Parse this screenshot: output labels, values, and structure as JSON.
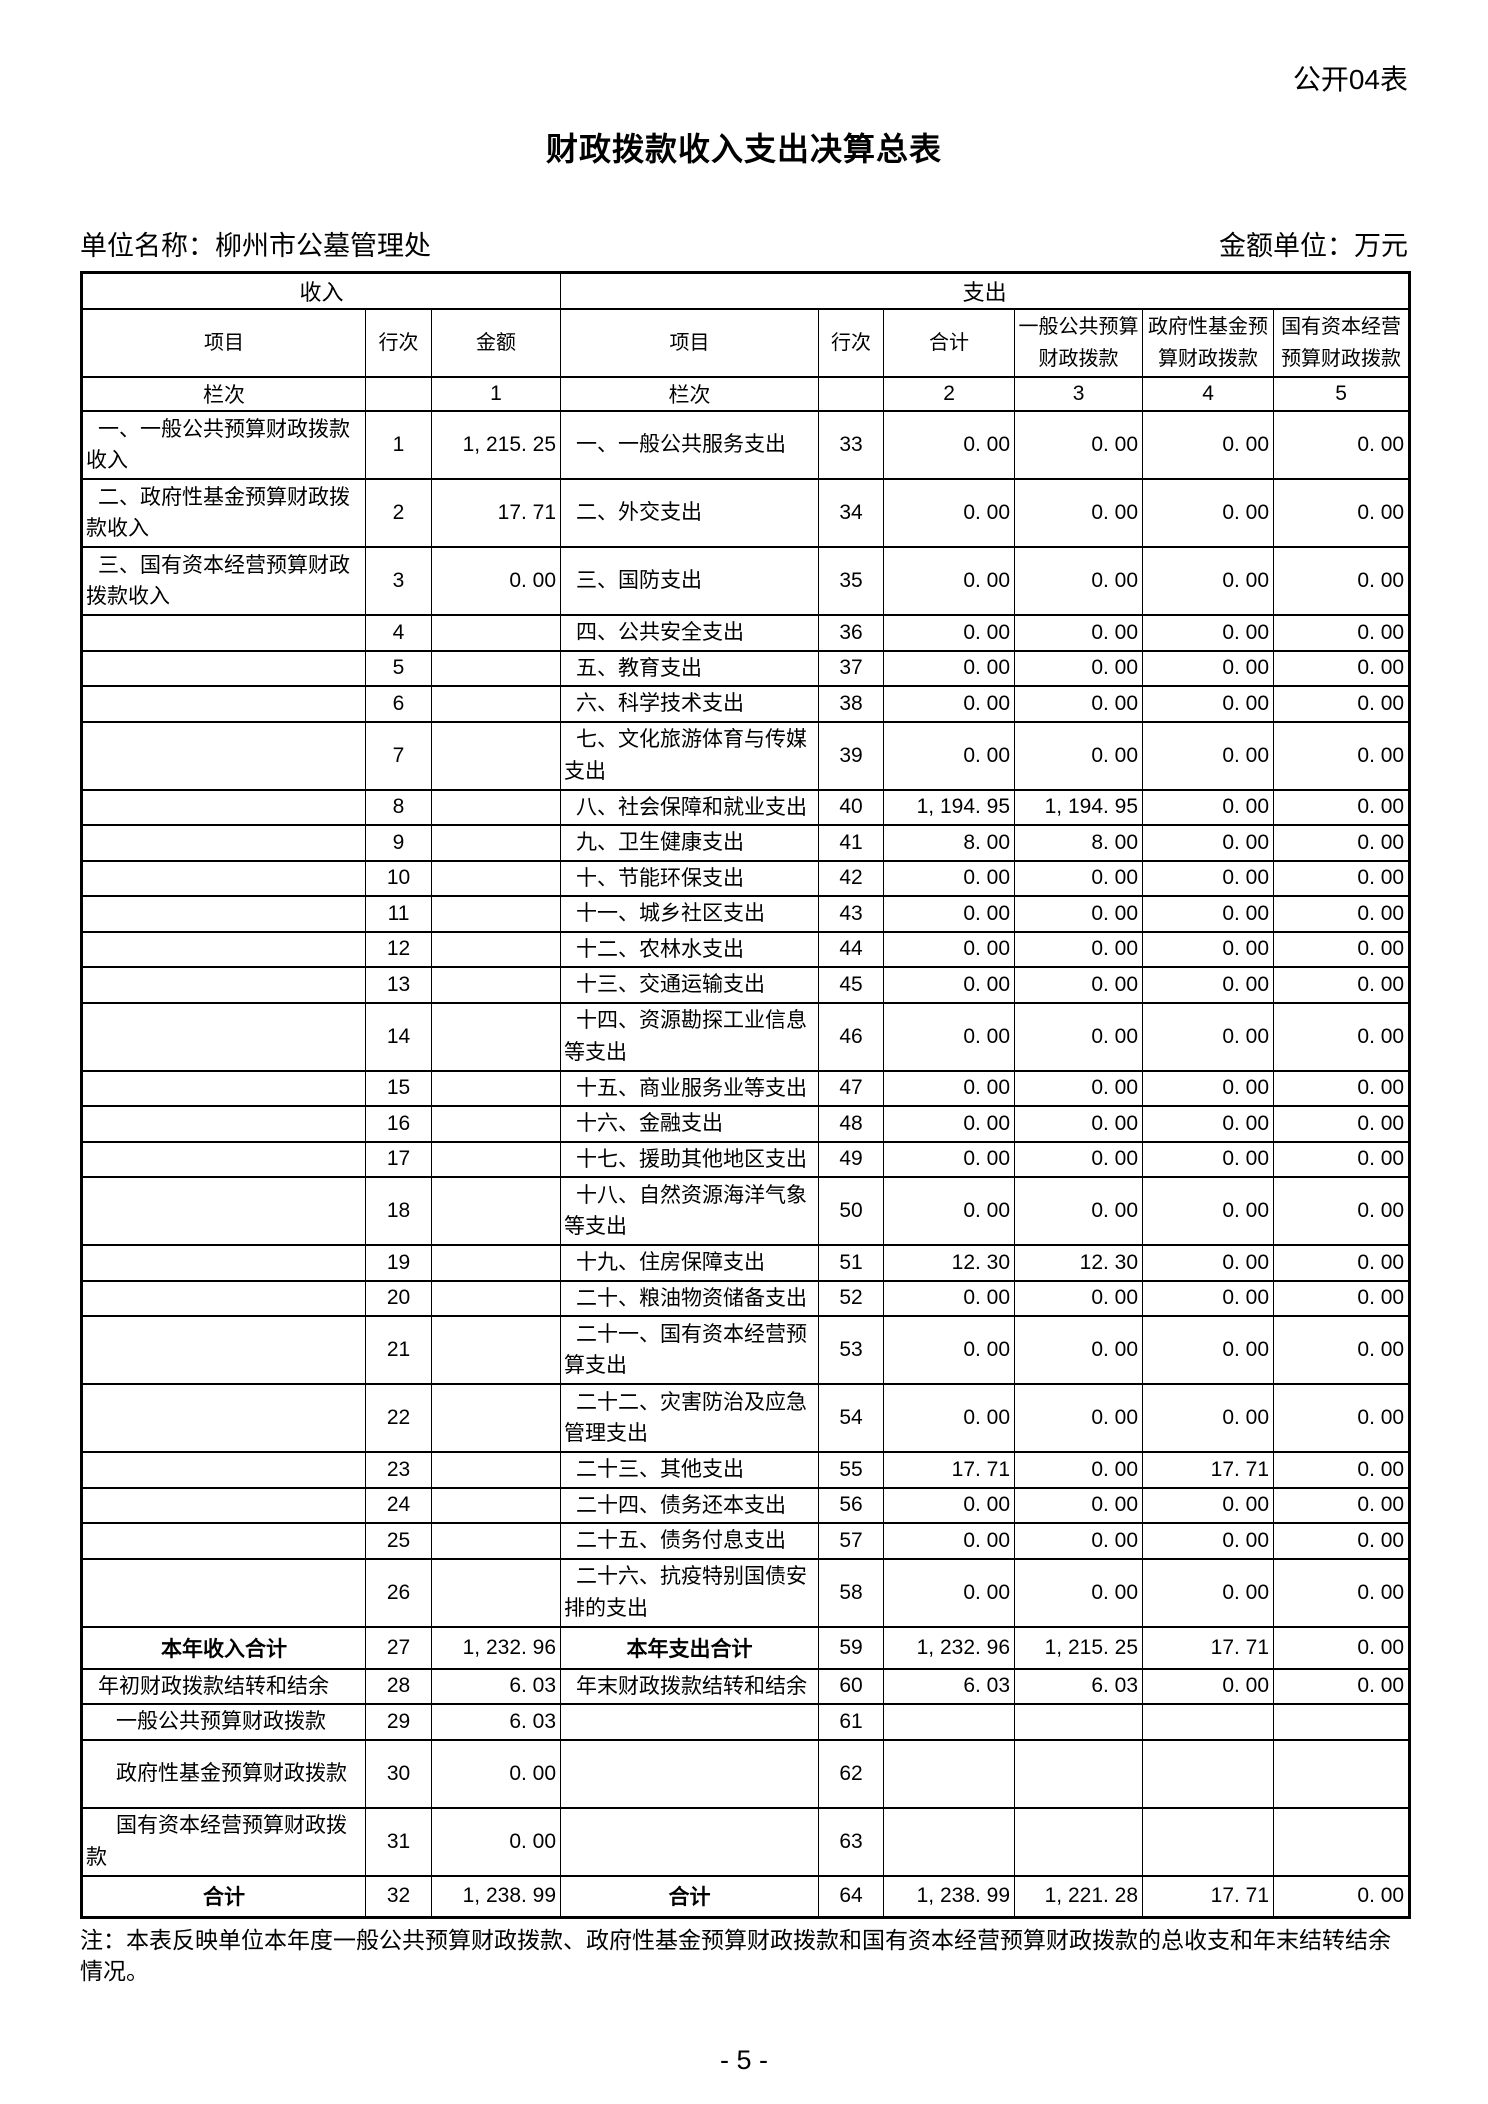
{
  "page": {
    "form_label": "公开04表",
    "title": "财政拨款收入支出决算总表",
    "unit_name": "单位名称：柳州市公墓管理处",
    "amount_unit": "金额单位：万元",
    "note": "注：本表反映单位本年度一般公共预算财政拨款、政府性基金预算财政拨款和国有资本经营预算财政拨款的总收支和年末结转结余情况。",
    "page_number": "- 5 -"
  },
  "table": {
    "group_headers": {
      "income": "收入",
      "expenditure": "支出"
    },
    "columns": [
      "项目",
      "行次",
      "金额",
      "项目",
      "行次",
      "合计",
      "一般公共预算财政拨款",
      "政府性基金预算财政拨款",
      "国有资本经营预算财政拨款"
    ],
    "index_row": [
      "栏次",
      "",
      "1",
      "栏次",
      "",
      "2",
      "3",
      "4",
      "5"
    ],
    "rows": [
      {
        "c": [
          "一、一般公共预算财政拨款收入",
          "1",
          "1, 215. 25",
          "一、一般公共服务支出",
          "33",
          "0. 00",
          "0. 00",
          "0. 00",
          "0. 00"
        ],
        "tall": true
      },
      {
        "c": [
          "二、政府性基金预算财政拨款收入",
          "2",
          "17. 71",
          "二、外交支出",
          "34",
          "0. 00",
          "0. 00",
          "0. 00",
          "0. 00"
        ],
        "tall": true
      },
      {
        "c": [
          "三、国有资本经营预算财政拨款收入",
          "3",
          "0. 00",
          "三、国防支出",
          "35",
          "0. 00",
          "0. 00",
          "0. 00",
          "0. 00"
        ],
        "tall": true
      },
      {
        "c": [
          "",
          "4",
          "",
          "四、公共安全支出",
          "36",
          "0. 00",
          "0. 00",
          "0. 00",
          "0. 00"
        ]
      },
      {
        "c": [
          "",
          "5",
          "",
          "五、教育支出",
          "37",
          "0. 00",
          "0. 00",
          "0. 00",
          "0. 00"
        ]
      },
      {
        "c": [
          "",
          "6",
          "",
          "六、科学技术支出",
          "38",
          "0. 00",
          "0. 00",
          "0. 00",
          "0. 00"
        ]
      },
      {
        "c": [
          "",
          "7",
          "",
          "七、文化旅游体育与传媒支出",
          "39",
          "0. 00",
          "0. 00",
          "0. 00",
          "0. 00"
        ],
        "tall": true
      },
      {
        "c": [
          "",
          "8",
          "",
          "八、社会保障和就业支出",
          "40",
          "1, 194. 95",
          "1, 194. 95",
          "0. 00",
          "0. 00"
        ]
      },
      {
        "c": [
          "",
          "9",
          "",
          "九、卫生健康支出",
          "41",
          "8. 00",
          "8. 00",
          "0. 00",
          "0. 00"
        ]
      },
      {
        "c": [
          "",
          "10",
          "",
          "十、节能环保支出",
          "42",
          "0. 00",
          "0. 00",
          "0. 00",
          "0. 00"
        ]
      },
      {
        "c": [
          "",
          "11",
          "",
          "十一、城乡社区支出",
          "43",
          "0. 00",
          "0. 00",
          "0. 00",
          "0. 00"
        ]
      },
      {
        "c": [
          "",
          "12",
          "",
          "十二、农林水支出",
          "44",
          "0. 00",
          "0. 00",
          "0. 00",
          "0. 00"
        ]
      },
      {
        "c": [
          "",
          "13",
          "",
          "十三、交通运输支出",
          "45",
          "0. 00",
          "0. 00",
          "0. 00",
          "0. 00"
        ]
      },
      {
        "c": [
          "",
          "14",
          "",
          "十四、资源勘探工业信息等支出",
          "46",
          "0. 00",
          "0. 00",
          "0. 00",
          "0. 00"
        ],
        "tall": true
      },
      {
        "c": [
          "",
          "15",
          "",
          "十五、商业服务业等支出",
          "47",
          "0. 00",
          "0. 00",
          "0. 00",
          "0. 00"
        ]
      },
      {
        "c": [
          "",
          "16",
          "",
          "十六、金融支出",
          "48",
          "0. 00",
          "0. 00",
          "0. 00",
          "0. 00"
        ]
      },
      {
        "c": [
          "",
          "17",
          "",
          "十七、援助其他地区支出",
          "49",
          "0. 00",
          "0. 00",
          "0. 00",
          "0. 00"
        ]
      },
      {
        "c": [
          "",
          "18",
          "",
          "十八、自然资源海洋气象等支出",
          "50",
          "0. 00",
          "0. 00",
          "0. 00",
          "0. 00"
        ],
        "tall": true
      },
      {
        "c": [
          "",
          "19",
          "",
          "十九、住房保障支出",
          "51",
          "12. 30",
          "12. 30",
          "0. 00",
          "0. 00"
        ]
      },
      {
        "c": [
          "",
          "20",
          "",
          "二十、粮油物资储备支出",
          "52",
          "0. 00",
          "0. 00",
          "0. 00",
          "0. 00"
        ]
      },
      {
        "c": [
          "",
          "21",
          "",
          "二十一、国有资本经营预算支出",
          "53",
          "0. 00",
          "0. 00",
          "0. 00",
          "0. 00"
        ],
        "tall": true
      },
      {
        "c": [
          "",
          "22",
          "",
          "二十二、灾害防治及应急管理支出",
          "54",
          "0. 00",
          "0. 00",
          "0. 00",
          "0. 00"
        ],
        "tall": true
      },
      {
        "c": [
          "",
          "23",
          "",
          "二十三、其他支出",
          "55",
          "17. 71",
          "0. 00",
          "17. 71",
          "0. 00"
        ]
      },
      {
        "c": [
          "",
          "24",
          "",
          "二十四、债务还本支出",
          "56",
          "0. 00",
          "0. 00",
          "0. 00",
          "0. 00"
        ]
      },
      {
        "c": [
          "",
          "25",
          "",
          "二十五、债务付息支出",
          "57",
          "0. 00",
          "0. 00",
          "0. 00",
          "0. 00"
        ]
      },
      {
        "c": [
          "",
          "26",
          "",
          "二十六、抗疫特别国债安排的支出",
          "58",
          "0. 00",
          "0. 00",
          "0. 00",
          "0. 00"
        ],
        "tall": true
      },
      {
        "c": [
          "本年收入合计",
          "27",
          "1, 232. 96",
          "本年支出合计",
          "59",
          "1, 232. 96",
          "1, 215. 25",
          "17. 71",
          "0. 00"
        ],
        "sum": true
      },
      {
        "c": [
          "年初财政拨款结转和结余",
          "28",
          "6. 03",
          "年末财政拨款结转和结余",
          "60",
          "6. 03",
          "6. 03",
          "0. 00",
          "0. 00"
        ]
      },
      {
        "c": [
          "一般公共预算财政拨款",
          "29",
          "6. 03",
          "",
          "61",
          "",
          "",
          "",
          ""
        ],
        "indent": true
      },
      {
        "c": [
          "政府性基金预算财政拨款",
          "30",
          "0. 00",
          "",
          "62",
          "",
          "",
          "",
          ""
        ],
        "indent": true,
        "tall": true
      },
      {
        "c": [
          "国有资本经营预算财政拨款",
          "31",
          "0. 00",
          "",
          "63",
          "",
          "",
          "",
          ""
        ],
        "indent": true,
        "tall": true
      },
      {
        "c": [
          "合计",
          "32",
          "1, 238. 99",
          "合计",
          "64",
          "1, 238. 99",
          "1, 221. 28",
          "17. 71",
          "0. 00"
        ],
        "sum": true
      }
    ]
  }
}
